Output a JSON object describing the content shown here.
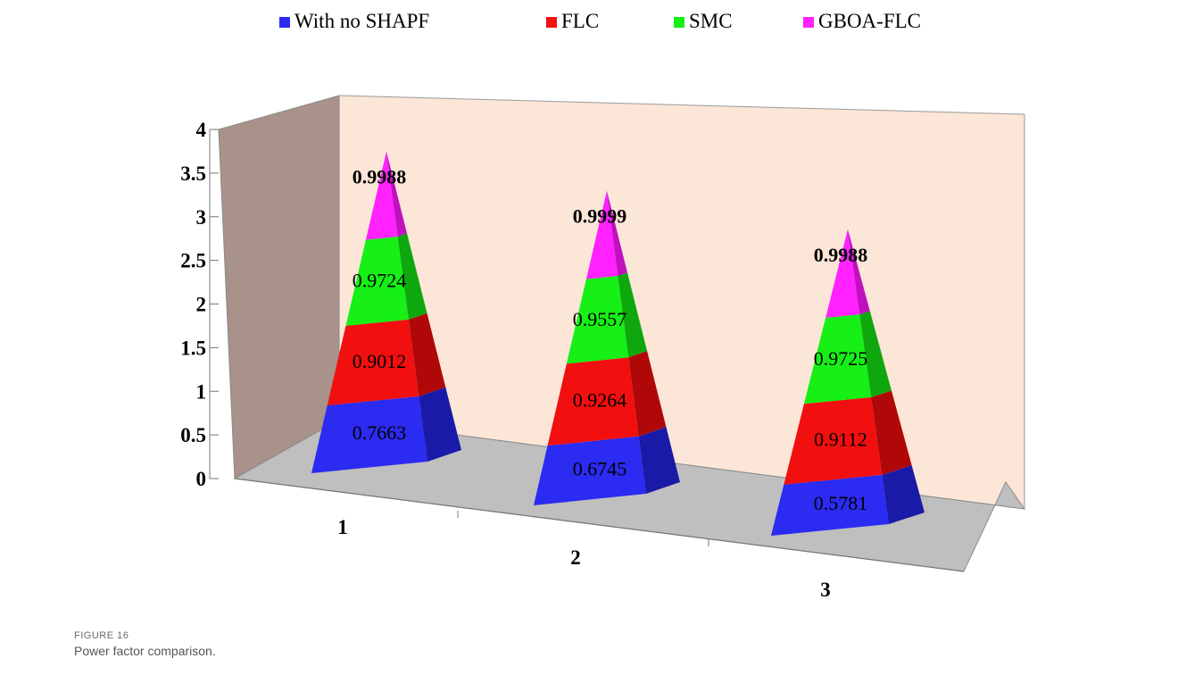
{
  "figure": {
    "label": "FIGURE 16",
    "caption": "Power factor comparison."
  },
  "chart_data": {
    "type": "bar",
    "subtype": "stacked-3d-pyramid",
    "categories": [
      "1",
      "2",
      "3"
    ],
    "series": [
      {
        "name": "With no SHAPF",
        "color": "#2b2bf2",
        "side_color": "#1a1aa8",
        "values": [
          0.7663,
          0.6745,
          0.5781
        ]
      },
      {
        "name": "FLC",
        "color": "#f20f0f",
        "side_color": "#b00808",
        "values": [
          0.9012,
          0.9264,
          0.9112
        ]
      },
      {
        "name": "SMC",
        "color": "#16f016",
        "side_color": "#0ea80e",
        "values": [
          0.9724,
          0.9557,
          0.9725
        ]
      },
      {
        "name": "GBOA-FLC",
        "color": "#ff22ff",
        "side_color": "#c010c0",
        "values": [
          0.9988,
          0.9999,
          0.9988
        ]
      }
    ],
    "y_ticks": [
      "0",
      "0.5",
      "1",
      "1.5",
      "2",
      "2.5",
      "3",
      "3.5",
      "4"
    ],
    "ylim": [
      0,
      4
    ],
    "legend_position": "top",
    "grid": false,
    "wall_colors": {
      "back": "#fbe6d7",
      "side": "#a8928a",
      "floor": "#bfbfbf"
    }
  }
}
